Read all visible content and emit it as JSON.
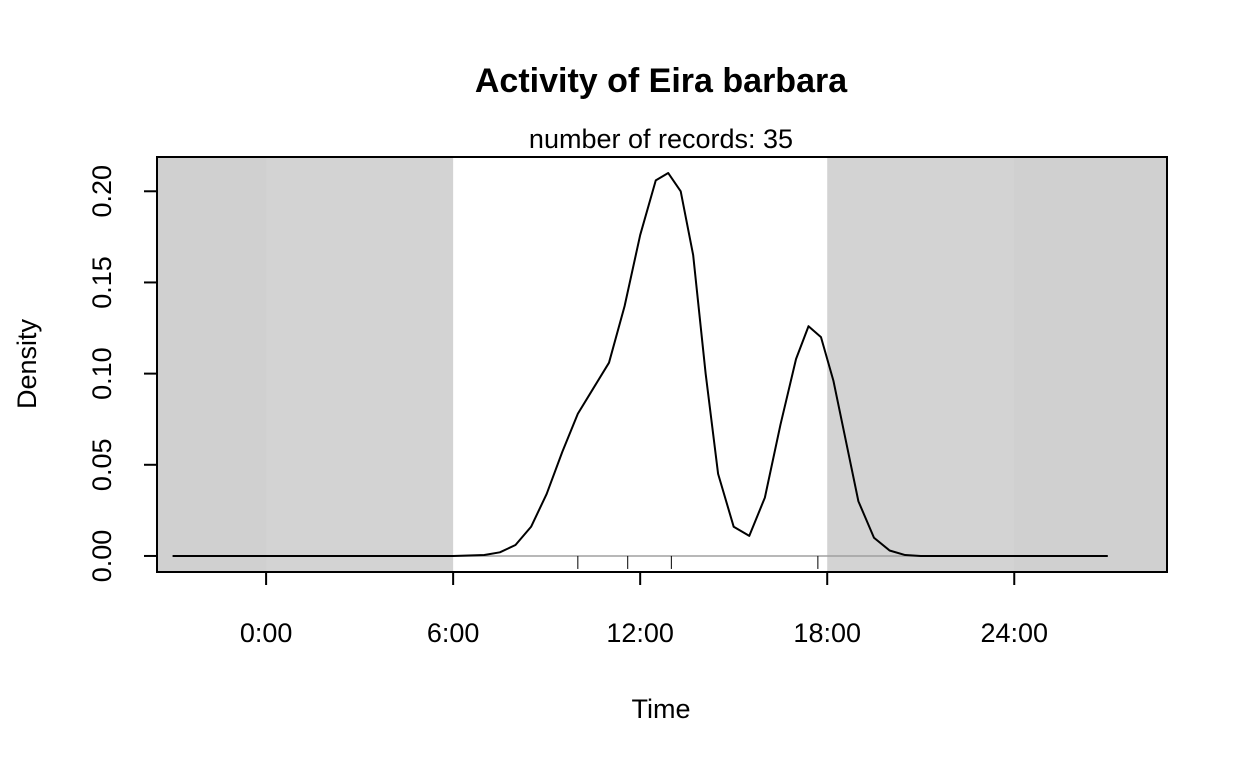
{
  "chart_data": {
    "type": "line",
    "title": "Activity of Eira barbara",
    "subtitle": "number of records: 35",
    "xlabel": "Time",
    "ylabel": "Density",
    "xlim": [
      -3.5,
      28.9
    ],
    "ylim": [
      -0.0088,
      0.2188
    ],
    "x_ticks": [
      0,
      6,
      12,
      18,
      24
    ],
    "x_tick_labels": [
      "0:00",
      "6:00",
      "12:00",
      "18:00",
      "24:00"
    ],
    "y_ticks": [
      0,
      0.05,
      0.1,
      0.15,
      0.2
    ],
    "y_tick_labels": [
      "0.00",
      "0.05",
      "0.10",
      "0.15",
      "0.20"
    ],
    "shading": {
      "night_color": "#d3d3d3",
      "daylight_color": "#ffffff",
      "outer_color": "#d0d0d0",
      "sunrise": 6,
      "sunset": 18
    },
    "series": [
      {
        "color": "#000000",
        "x": [
          -3,
          0,
          3,
          6,
          7,
          7.5,
          8,
          8.5,
          9,
          9.5,
          10,
          10.5,
          11,
          11.5,
          12,
          12.5,
          12.9,
          13.3,
          13.7,
          14.1,
          14.5,
          15,
          15.5,
          16,
          16.5,
          17,
          17.4,
          17.8,
          18.2,
          18.6,
          19,
          19.5,
          20,
          20.5,
          21,
          24,
          27
        ],
        "y": [
          0,
          0,
          0,
          0,
          0.0005,
          0.002,
          0.006,
          0.016,
          0.034,
          0.057,
          0.078,
          0.092,
          0.106,
          0.137,
          0.176,
          0.206,
          0.21,
          0.2,
          0.165,
          0.1,
          0.045,
          0.016,
          0.011,
          0.032,
          0.072,
          0.108,
          0.126,
          0.12,
          0.096,
          0.063,
          0.03,
          0.01,
          0.003,
          0.0005,
          0,
          0,
          0
        ]
      }
    ],
    "rug": [
      10,
      11.6,
      13,
      17.7
    ]
  }
}
